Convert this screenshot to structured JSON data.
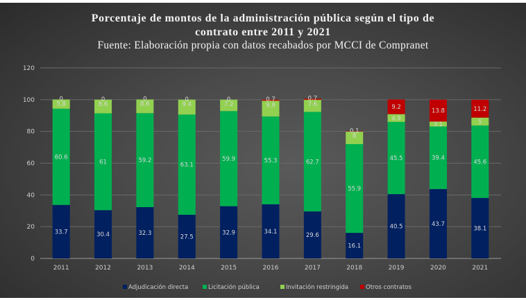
{
  "chart_data": {
    "type": "bar",
    "stacked": true,
    "title": "Porcentaje de montos de la administración pública según el tipo de",
    "title_line2": "contrato entre 2011 y 2021",
    "subtitle": "Fuente: Elaboración propia con datos recabados por MCCI de Compranet",
    "xlabel": "",
    "ylabel": "",
    "ylim": [
      0,
      120
    ],
    "yticks": [
      0,
      20,
      40,
      60,
      80,
      100,
      120
    ],
    "grid": true,
    "legend_position": "bottom",
    "categories": [
      "2011",
      "2012",
      "2013",
      "2014",
      "2015",
      "2016",
      "2017",
      "2018",
      "2019",
      "2020",
      "2021"
    ],
    "series": [
      {
        "name": "Adjudicación directa",
        "color": "#002060",
        "values": [
          33.7,
          30.4,
          32.3,
          27.5,
          32.9,
          34.1,
          29.6,
          16.1,
          40.5,
          43.7,
          38.1
        ]
      },
      {
        "name": "Licitación pública",
        "color": "#00b050",
        "values": [
          60.6,
          61,
          59.2,
          63.1,
          59.9,
          55.3,
          62.7,
          55.9,
          45.5,
          39.4,
          45.6
        ]
      },
      {
        "name": "Invitación restringida",
        "color": "#92d050",
        "values": [
          5.8,
          8.6,
          8.6,
          9.4,
          7.2,
          9.9,
          7.6,
          8,
          4.9,
          3.1,
          5
        ]
      },
      {
        "name": "Otros contratos",
        "color": "#c00000",
        "values": [
          0,
          0,
          0,
          0,
          0,
          0.7,
          0.7,
          0.1,
          9.2,
          13.8,
          11.2
        ]
      }
    ]
  }
}
